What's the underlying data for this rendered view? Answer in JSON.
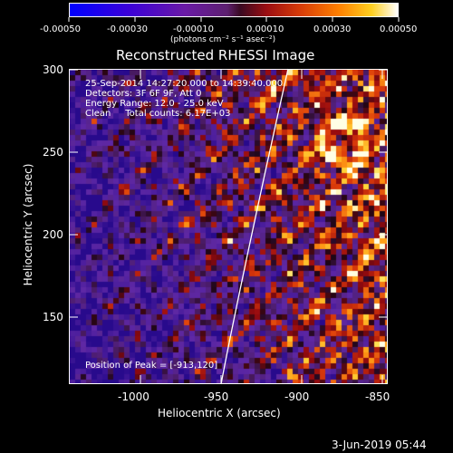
{
  "colorbar": {
    "ticks": [
      "-0.00050",
      "-0.00030",
      "-0.00010",
      "0.00010",
      "0.00030",
      "0.00050"
    ],
    "units": "(photons cm⁻² s⁻¹ asec⁻²)"
  },
  "title": "Reconstructed RHESSI Image",
  "annotations": {
    "time_range": "25-Sep-2014 14:27:20.000 to 14:39:40.000",
    "detectors": "Detectors: 3F 6F 9F, Att 0",
    "energy": "Energy Range: 12.0 - 25.0 keV",
    "clean": "Clean     Total counts: 6.17E+03",
    "peak": "Position of Peak = [-913,120]"
  },
  "axes": {
    "xlabel": "Heliocentric X (arcsec)",
    "ylabel": "Heliocentric Y (arcsec)",
    "xticks": [
      "-1000",
      "-950",
      "-900",
      "-850"
    ],
    "yticks": [
      "300",
      "250",
      "200",
      "150"
    ]
  },
  "footer": {
    "date": "3-Jun-2019 05:44"
  }
}
